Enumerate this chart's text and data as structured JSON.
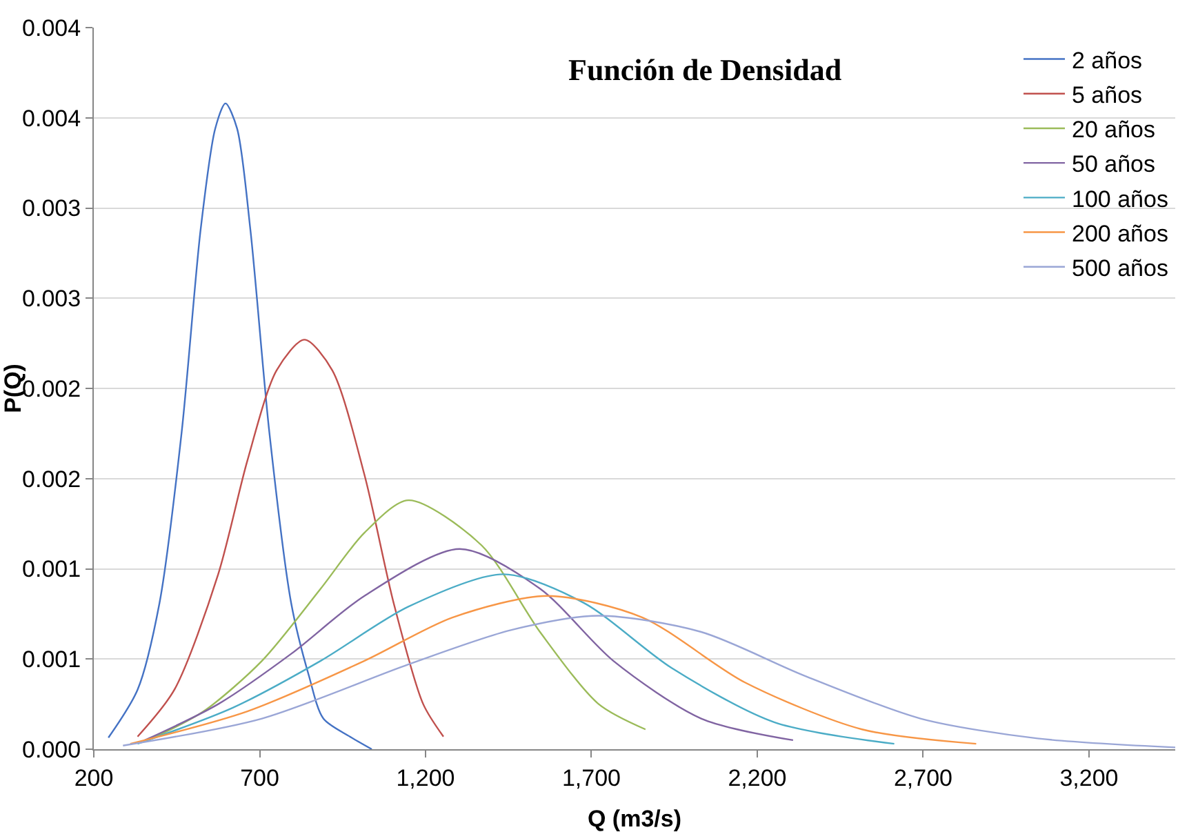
{
  "chart_data": {
    "type": "line",
    "title": "Función de Densidad",
    "xlabel": "Q (m3/s)",
    "ylabel": "P(Q)",
    "xlim": [
      200,
      3460
    ],
    "xticks": [
      200,
      700,
      {
        "value": 1200,
        "label": "1,200"
      },
      {
        "value": 1700,
        "label": "1,700"
      },
      {
        "value": 2200,
        "label": "2,200"
      },
      {
        "value": 2700,
        "label": "2,700"
      },
      {
        "value": 3200,
        "label": "3,200"
      }
    ],
    "ylim": [
      0,
      0.004
    ],
    "yticks": [
      {
        "value": 0,
        "label": "0.000"
      },
      {
        "value": 0.0005,
        "label": "0.001"
      },
      {
        "value": 0.001,
        "label": "0.001"
      },
      {
        "value": 0.0015,
        "label": "0.002"
      },
      {
        "value": 0.002,
        "label": "0.002"
      },
      {
        "value": 0.0025,
        "label": "0.003"
      },
      {
        "value": 0.003,
        "label": "0.003"
      },
      {
        "value": 0.0035,
        "label": "0.004"
      },
      {
        "value": 0.004,
        "label": "0.004"
      }
    ],
    "grid": "y",
    "legend": "top right",
    "marker": "none",
    "line_style": "solid",
    "series": [
      {
        "name": "2 años",
        "color": "#4472c4",
        "x": [
          244,
          332,
          398,
          465,
          522,
          566,
          597,
          632,
          672,
          729,
          795,
          848,
          892,
          972,
          1038
        ],
        "values": [
          6.4e-05,
          0.00033,
          0.00081,
          0.00176,
          0.00288,
          0.00344,
          0.00358,
          0.00344,
          0.00288,
          0.00176,
          0.00081,
          0.00041,
          0.00017,
          7e-05,
          0
        ]
      },
      {
        "name": "5 años",
        "color": "#c0504d",
        "x": [
          332,
          443,
          575,
          663,
          751,
          835,
          919,
          1016,
          1104,
          1193,
          1254
        ],
        "values": [
          7e-05,
          0.00033,
          0.00097,
          0.0016,
          0.0021,
          0.00227,
          0.0021,
          0.00152,
          0.00081,
          0.00025,
          7e-05
        ]
      },
      {
        "name": "20 años",
        "color": "#9bbb59",
        "x": [
          376,
          531,
          707,
          884,
          1016,
          1148,
          1369,
          1545,
          1722,
          1863
        ],
        "values": [
          6e-05,
          0.00021,
          0.00049,
          0.00089,
          0.0012,
          0.00138,
          0.00113,
          0.00065,
          0.00025,
          0.00011
        ]
      },
      {
        "name": "50 años",
        "color": "#8064a2",
        "x": [
          354,
          575,
          796,
          1016,
          1303,
          1545,
          1766,
          2031,
          2308
        ],
        "values": [
          5e-05,
          0.00025,
          0.00053,
          0.00085,
          0.00111,
          0.00089,
          0.00049,
          0.00017,
          5e-05
        ]
      },
      {
        "name": "100 años",
        "color": "#4bacc6",
        "x": [
          332,
          619,
          884,
          1148,
          1435,
          1678,
          1942,
          2251,
          2613
        ],
        "values": [
          3e-05,
          0.00023,
          0.00049,
          0.00079,
          0.00097,
          0.00081,
          0.00045,
          0.00015,
          3e-05
        ]
      },
      {
        "name": "200 años",
        "color": "#f79646",
        "x": [
          310,
          663,
          1016,
          1281,
          1567,
          1854,
          2163,
          2516,
          2860
        ],
        "values": [
          3e-05,
          0.00021,
          0.00049,
          0.00073,
          0.00085,
          0.00073,
          0.00037,
          0.00011,
          3e-05
        ]
      },
      {
        "name": "500 años",
        "color": "#9aa6d6",
        "x": [
          288,
          707,
          1148,
          1457,
          1722,
          2031,
          2339,
          2692,
          3045,
          3460
        ],
        "values": [
          2e-05,
          0.00017,
          0.00047,
          0.00066,
          0.00074,
          0.00065,
          0.00041,
          0.00017,
          6e-05,
          1e-05
        ]
      }
    ]
  }
}
